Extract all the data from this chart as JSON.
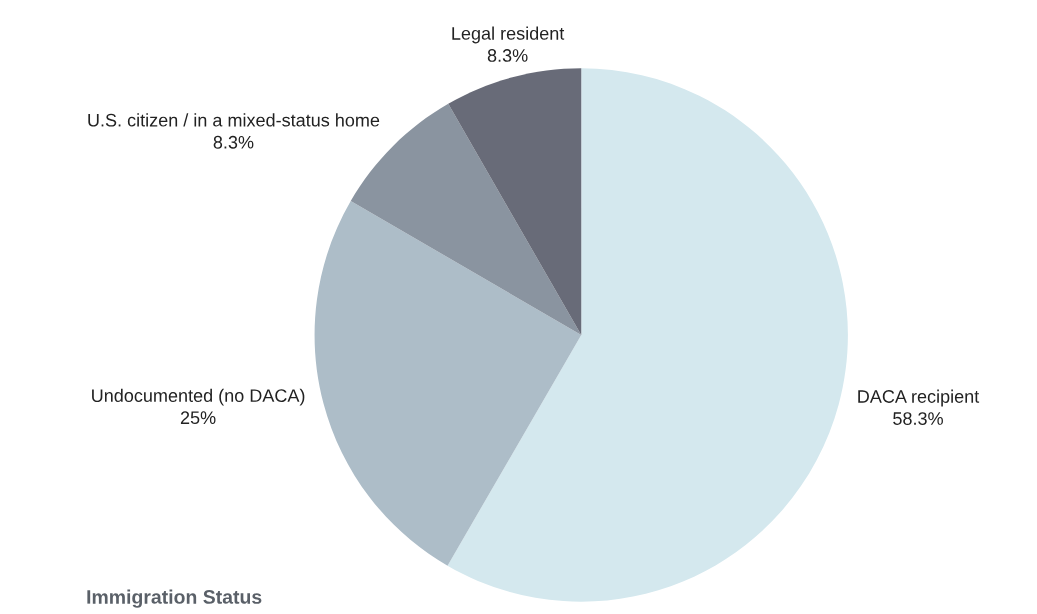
{
  "chart_data": {
    "type": "pie",
    "title": "Immigration Status",
    "categories": [
      "DACA recipient",
      "Undocumented (no DACA)",
      "U.S. citizen / in a mixed-status home",
      "Legal resident"
    ],
    "values": [
      58.3,
      25,
      8.3,
      8.3
    ],
    "colors": [
      "#d4e8ee",
      "#adbdc8",
      "#8a94a0",
      "#686b78"
    ],
    "value_labels": [
      "58.3%",
      "25%",
      "8.3%",
      "8.3%"
    ]
  }
}
